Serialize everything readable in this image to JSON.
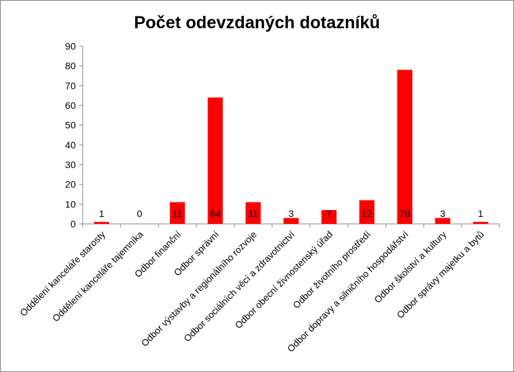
{
  "chart_data": {
    "type": "bar",
    "title": "Počet odevzdaných dotazníků",
    "xlabel": "",
    "ylabel": "",
    "ylim": [
      0,
      90
    ],
    "yticks": [
      0,
      10,
      20,
      30,
      40,
      50,
      60,
      70,
      80,
      90
    ],
    "grid": false,
    "legend": "none",
    "bar_color": "#ff0000",
    "categories": [
      "Oddělení kanceláře starosty",
      "Oddělení kanceláře tajemníka",
      "Odbor finanční",
      "Odbor správní",
      "Odbor výstavby a regionálního rozvoje",
      "Odbor sociálních věcí a zdravotnictví",
      "Odbor obecní živnostenský úřad",
      "Odbor životního prostředí",
      "Odbor dopravy a silničního hospodářství",
      "Odbor školství a kultury",
      "Odbor správy majetku a bytů"
    ],
    "values": [
      1,
      0,
      11,
      64,
      11,
      3,
      7,
      12,
      78,
      3,
      1
    ]
  }
}
